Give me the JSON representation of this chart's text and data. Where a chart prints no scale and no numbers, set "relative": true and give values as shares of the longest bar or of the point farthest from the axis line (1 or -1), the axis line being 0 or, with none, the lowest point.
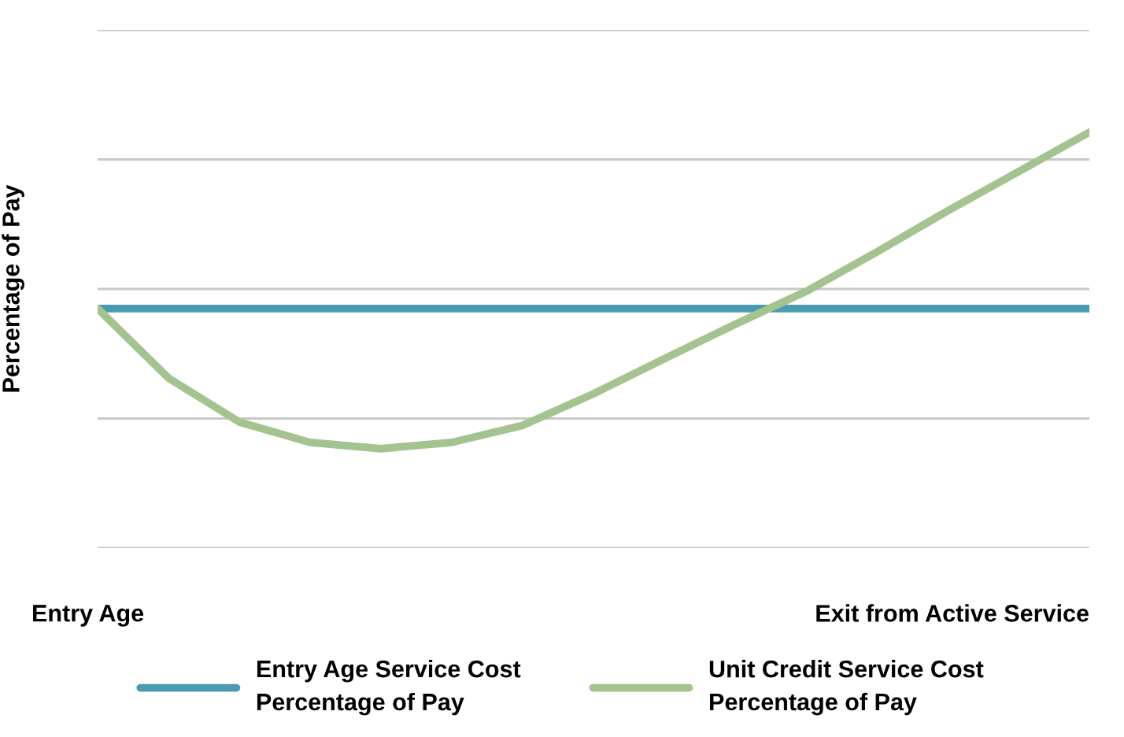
{
  "chart_data": {
    "type": "line",
    "relative": true,
    "ylabel": "Percentage of Pay",
    "categories": [
      null,
      null,
      null,
      null,
      null,
      null,
      null,
      null,
      null,
      null,
      null,
      null,
      null,
      null,
      null
    ],
    "annotations": [
      "Entry Age",
      "Exit from Active Service"
    ],
    "series": [
      {
        "name": "Entry Age Service Cost Percentage of Pay",
        "color": "#4a9bb0",
        "values": [
          0.576,
          0.576,
          0.576,
          0.576,
          0.576,
          0.576,
          0.576,
          0.576,
          0.576,
          0.576,
          0.576,
          0.576,
          0.576,
          0.576,
          0.576
        ]
      },
      {
        "name": "Unit Credit Service Cost Percentage of Pay",
        "color": "#a3c48e",
        "values": [
          0.576,
          0.409,
          0.303,
          0.254,
          0.239,
          0.254,
          0.295,
          0.371,
          0.455,
          0.538,
          0.617,
          0.712,
          0.811,
          0.905,
          1
        ]
      }
    ],
    "grid": "y",
    "legend": "bottom",
    "marker": "none",
    "line_style": "solid"
  }
}
